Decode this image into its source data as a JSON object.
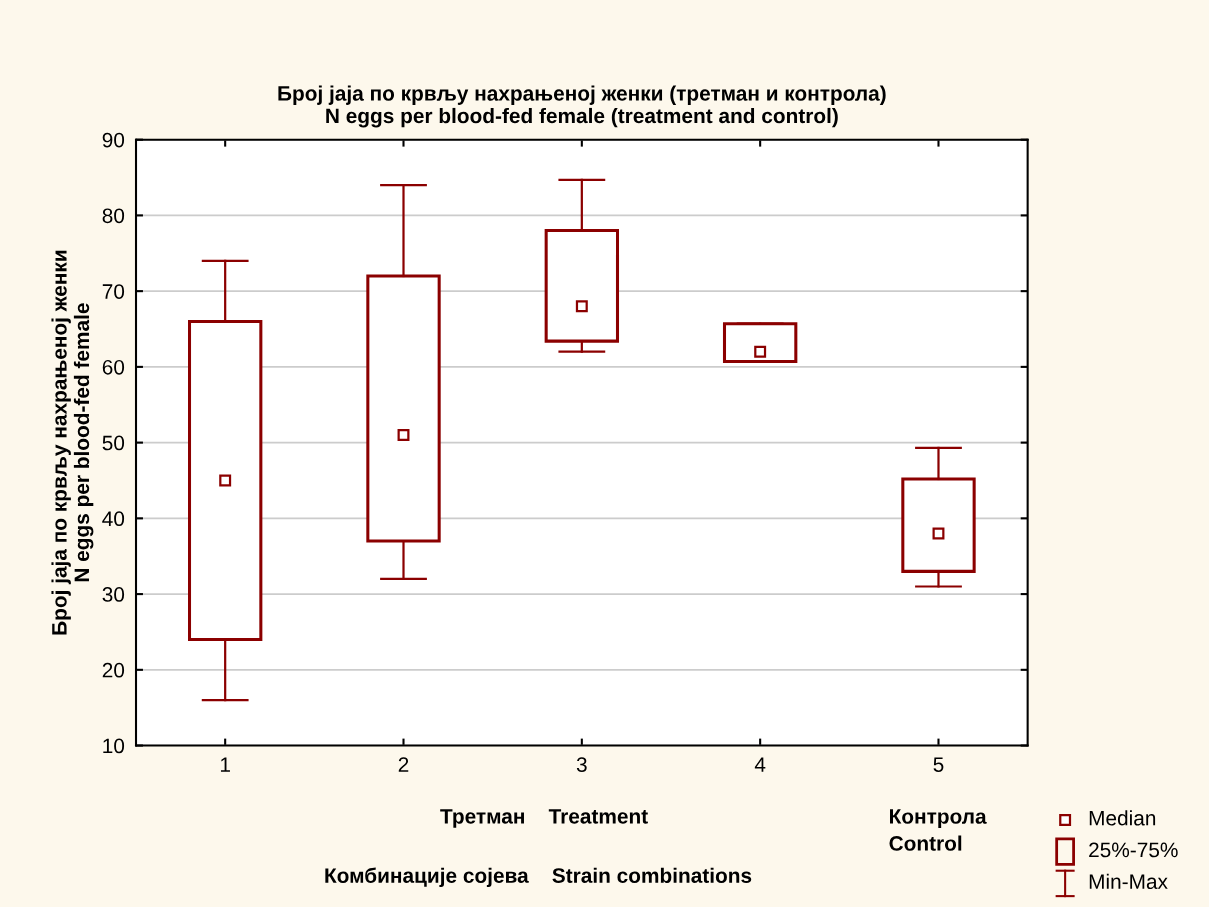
{
  "chart_data": {
    "type": "box",
    "title": "Број јаја по крвљу нахрањеној женки (третман и контрола)\nN eggs per blood-fed female (treatment and control)",
    "xlabel": "Комбинације сојева    Strain combinations",
    "ylabel": "Број јаја по крвљу нахрањеној женки\nN eggs per blood-fed female",
    "categories": [
      "1",
      "2",
      "3",
      "4",
      "5"
    ],
    "series": [
      {
        "color": "#8b0000",
        "boxes": [
          {
            "low": 16,
            "q1": 24,
            "median": 45,
            "q3": 66,
            "high": 74
          },
          {
            "low": 32,
            "q1": 37,
            "median": 51,
            "q3": 72,
            "high": 84
          },
          {
            "low": 62,
            "q1": 63.4,
            "median": 68,
            "q3": 78,
            "high": 84.7
          },
          {
            "low": 60.7,
            "q1": 60.7,
            "median": 62,
            "q3": 65.7,
            "high": 65.7
          },
          {
            "low": 31,
            "q1": 33,
            "median": 38,
            "q3": 45.2,
            "high": 49.3
          }
        ]
      }
    ],
    "ylim": [
      10,
      90
    ],
    "yticks": [
      10,
      20,
      30,
      40,
      50,
      60,
      70,
      80,
      90
    ],
    "grid": "y",
    "marker": "square",
    "annotations": [
      "Третман    Treatment",
      "Контрола\nControl",
      "Median",
      "25%-75%",
      "Min-Max"
    ]
  }
}
